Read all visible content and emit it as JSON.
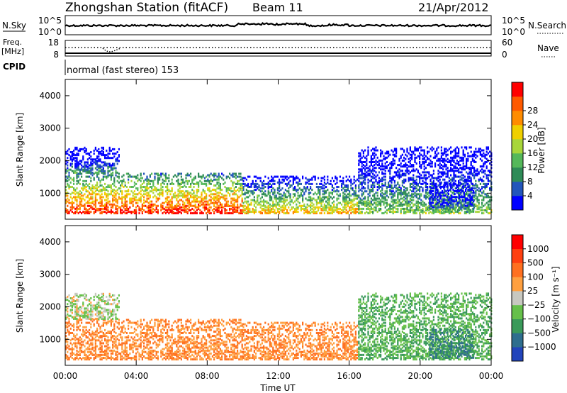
{
  "header": {
    "station": "Zhongshan Station (fitACF)",
    "beam": "Beam 11",
    "date": "21/Apr/2012"
  },
  "nsky_panel": {
    "left_label": "N.Sky",
    "right_label": "N.Search",
    "ticks_left": [
      "10^5",
      "10^0"
    ],
    "ticks_right": [
      "10^5",
      "10^0"
    ]
  },
  "freq_panel": {
    "left_label_1": "Freq.",
    "left_label_2": "[MHz]",
    "ticks_left": [
      "18",
      "8"
    ],
    "ticks_right": [
      "60",
      "0"
    ],
    "right_label": "Nave"
  },
  "cpid": {
    "label": "CPID",
    "mode": "normal (fast stereo) 153"
  },
  "power_panel": {
    "ylabel": "Slant Range [km]",
    "yticks": [
      "4000",
      "3000",
      "2000",
      "1000"
    ],
    "colorbar_label": "Power [dB]",
    "colorbar_ticks": [
      "28",
      "24",
      "20",
      "16",
      "12",
      "8",
      "4"
    ],
    "colors": [
      "#0000ff",
      "#2255bb",
      "#2e8b57",
      "#55b85a",
      "#a8d63a",
      "#f0d000",
      "#ff8c00",
      "#ff5a00",
      "#ff0000"
    ]
  },
  "velocity_panel": {
    "ylabel": "Slant Range [km]",
    "yticks": [
      "4000",
      "3000",
      "2000",
      "1000"
    ],
    "colorbar_label": "Velocity [m s⁻¹]",
    "colorbar_ticks": [
      "1000",
      "500",
      "100",
      "25",
      "−25",
      "−100",
      "−500",
      "−1000"
    ],
    "colors": [
      "#2244bb",
      "#2e6e8e",
      "#3a9a5a",
      "#66c04a",
      "#c8c8c0",
      "#ffa040",
      "#ff7020",
      "#ff4010",
      "#ff0000"
    ]
  },
  "xaxis": {
    "label": "Time UT",
    "ticks": [
      "00:00",
      "04:00",
      "08:00",
      "12:00",
      "16:00",
      "20:00",
      "00:00"
    ]
  },
  "chart_data": {
    "type": "heatmap",
    "title": "Zhongshan Station (fitACF) Beam 11 21/Apr/2012",
    "xlabel": "Time UT",
    "ylabel": "Slant Range [km]",
    "xlim": [
      "00:00",
      "24:00"
    ],
    "ylim": [
      200,
      4500
    ],
    "power_range_db": [
      0,
      30
    ],
    "velocity_range_ms": [
      -1000,
      1000
    ],
    "echo_regions": [
      {
        "t_start": 0,
        "t_end": 10,
        "r_start": 350,
        "r_end": 1600,
        "power_db": 28,
        "velocity_ms": -100
      },
      {
        "t_start": 0,
        "t_end": 3,
        "r_start": 1600,
        "r_end": 2400,
        "power_db": 10,
        "velocity_ms": 25
      },
      {
        "t_start": 10,
        "t_end": 16.5,
        "r_start": 350,
        "r_end": 1500,
        "power_db": 20,
        "velocity_ms": -100
      },
      {
        "t_start": 16.5,
        "t_end": 24,
        "r_start": 350,
        "r_end": 2400,
        "power_db": 14,
        "velocity_ms": 100
      },
      {
        "t_start": 20.5,
        "t_end": 23,
        "r_start": 400,
        "r_end": 1300,
        "power_db": 10,
        "velocity_ms": 500
      }
    ]
  }
}
